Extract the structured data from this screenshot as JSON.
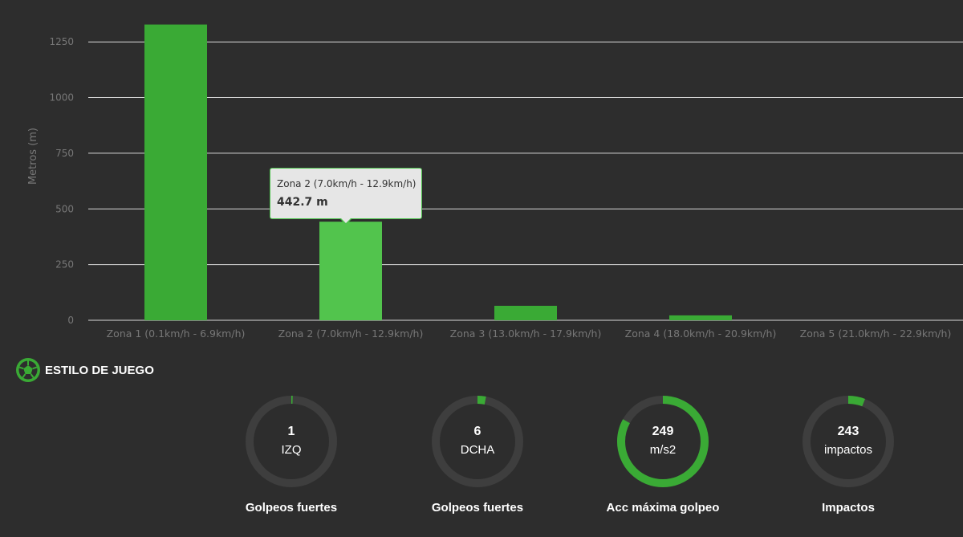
{
  "chart_data": {
    "type": "bar",
    "categories": [
      "Zona 1 (0.1km/h - 6.9km/h)",
      "Zona 2 (7.0km/h - 12.9km/h)",
      "Zona 3 (13.0km/h - 17.9km/h)",
      "Zona 4 (18.0km/h - 20.9km/h)",
      "Zona 5 (21.0km/h - 22.9km/h)"
    ],
    "values": [
      1328,
      442.7,
      65,
      22,
      0
    ],
    "ylabel": "Metros (m)",
    "yticks": [
      0,
      250,
      500,
      750,
      1000,
      1250
    ],
    "ylim": [
      0,
      1330
    ],
    "grid": true,
    "colors": {
      "bar": "#3aaa35",
      "bar_highlight": "#52c44d",
      "grid": "#d8d8d8",
      "axis_text": "#777777"
    },
    "highlight_index": 1
  },
  "tooltip": {
    "title": "Zona 2 (7.0km/h - 12.9km/h)",
    "value": "442.7 m"
  },
  "section": {
    "title": "ESTILO DE JUEGO",
    "icon": "soccer-ball-icon"
  },
  "gauges": [
    {
      "value": "1",
      "unit": "IZQ",
      "label": "Golpeos fuertes",
      "fraction": 0.005
    },
    {
      "value": "6",
      "unit": "DCHA",
      "label": "Golpeos fuertes",
      "fraction": 0.03
    },
    {
      "value": "249",
      "unit": "m/s2",
      "label": "Acc máxima golpeo",
      "fraction": 0.83
    },
    {
      "value": "243",
      "unit": "impactos",
      "label": "Impactos",
      "fraction": 0.06
    }
  ],
  "colors": {
    "background": "#2d2d2d",
    "accent": "#3aaa35",
    "ring_track": "#3e3e3e"
  }
}
